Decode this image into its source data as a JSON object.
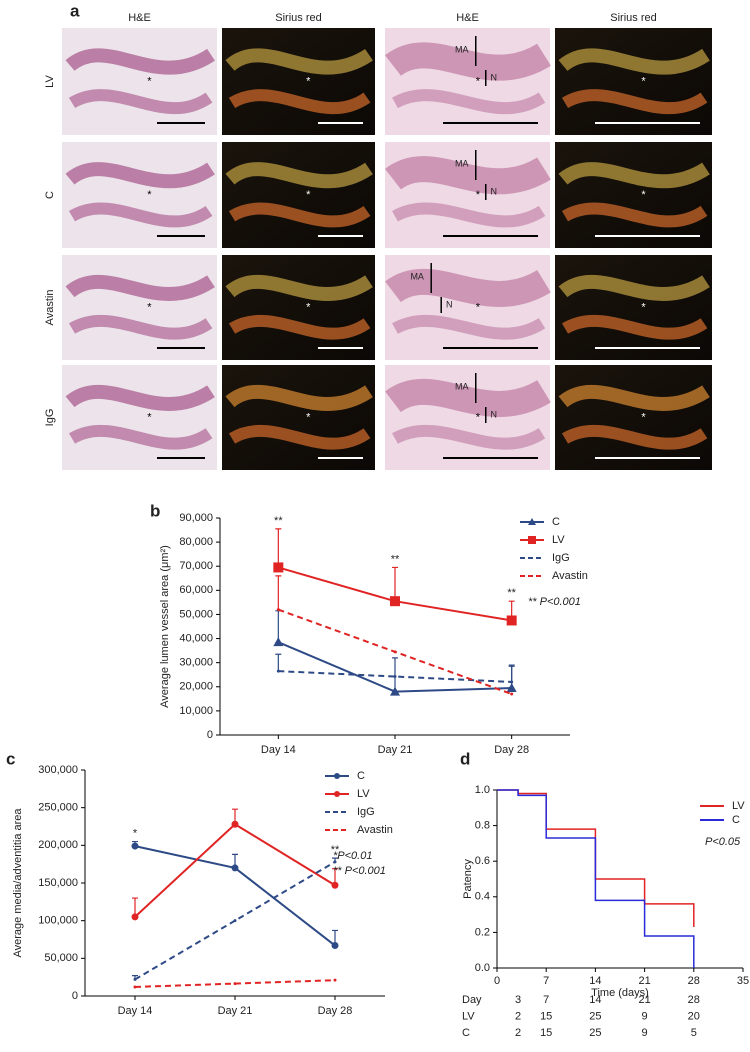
{
  "panel_a": {
    "label": "a",
    "column_headers": [
      "H&E",
      "Sirius red",
      "H&E",
      "Sirius red"
    ],
    "row_labels": [
      "LV",
      "C",
      "Avastin",
      "IgG"
    ],
    "region_labels": [
      "MA",
      "N"
    ],
    "lumen_marker": "*"
  },
  "chart_data": [
    {
      "type": "line",
      "panel": "b",
      "ylabel": "Average lumen vessel area (μm²)",
      "categories": [
        "Day 14",
        "Day 21",
        "Day 28"
      ],
      "ylim": [
        0,
        90000
      ],
      "yticks": [
        0,
        {
          "value": 10000,
          "label": "10,000"
        },
        {
          "value": 20000,
          "label": "20,000"
        },
        {
          "value": 30000,
          "label": "30,000"
        },
        {
          "value": 40000,
          "label": "40,000"
        },
        {
          "value": 50000,
          "label": "50,000"
        },
        {
          "value": 60000,
          "label": "60,000"
        },
        {
          "value": 70000,
          "label": "70,000"
        },
        {
          "value": 80000,
          "label": "80,000"
        },
        {
          "value": 90000,
          "label": "90,000"
        }
      ],
      "series": [
        {
          "name": "C",
          "color": "#2e4a86",
          "dashed": false,
          "marker": "triangle",
          "values": [
            38500,
            18000,
            19500
          ],
          "errors": [
            13000,
            14000,
            9000
          ]
        },
        {
          "name": "LV",
          "color": "#e02424",
          "dashed": false,
          "marker": "square",
          "values": [
            69500,
            55500,
            47500
          ],
          "errors": [
            16000,
            14000,
            8000
          ]
        },
        {
          "name": "IgG",
          "color": "#2e4a86",
          "dashed": true,
          "marker": "none",
          "values": [
            26500,
            24250,
            22000
          ],
          "errors": [
            7000,
            null,
            7000
          ]
        },
        {
          "name": "Avastin",
          "color": "#e02424",
          "dashed": true,
          "marker": "none",
          "values": [
            52000,
            34500,
            17000
          ],
          "errors": [
            14000,
            null,
            null
          ]
        }
      ],
      "significance": [
        "**",
        "**",
        "**"
      ],
      "notes": [
        "** P<0.001"
      ]
    },
    {
      "type": "line",
      "panel": "c",
      "ylabel": "Average media/adventitia area",
      "categories": [
        "Day 14",
        "Day 21",
        "Day 28"
      ],
      "ylim": [
        0,
        300000
      ],
      "yticks": [
        0,
        {
          "value": 50000,
          "label": "50,000"
        },
        {
          "value": 100000,
          "label": "100,000"
        },
        {
          "value": 150000,
          "label": "150,000"
        },
        {
          "value": 200000,
          "label": "200,000"
        },
        {
          "value": 250000,
          "label": "250,000"
        },
        {
          "value": 300000,
          "label": "300,000"
        }
      ],
      "series": [
        {
          "name": "C",
          "color": "#2e4a86",
          "dashed": false,
          "marker": "circle",
          "values": [
            199000,
            170000,
            67000
          ],
          "errors": [
            6000,
            18000,
            20000
          ]
        },
        {
          "name": "LV",
          "color": "#e02424",
          "dashed": false,
          "marker": "circle",
          "values": [
            105000,
            228000,
            147000
          ],
          "errors": [
            25000,
            20000,
            22000
          ]
        },
        {
          "name": "IgG",
          "color": "#2e4a86",
          "dashed": true,
          "marker": "none",
          "values": [
            22000,
            100000,
            178000
          ],
          "errors": [
            5000,
            null,
            5000
          ]
        },
        {
          "name": "Avastin",
          "color": "#e02424",
          "dashed": true,
          "marker": "none",
          "values": [
            12000,
            16500,
            21000
          ],
          "errors": [
            null,
            null,
            null
          ]
        }
      ],
      "significance": [
        "*",
        null,
        "**"
      ],
      "notes": [
        "*P<0.01",
        "** P<0.001"
      ]
    },
    {
      "type": "step",
      "panel": "d",
      "ylabel": "Patency",
      "xlabel": "Time (days)",
      "x": [
        0,
        3,
        7,
        14,
        21,
        28
      ],
      "xlim": [
        0,
        35
      ],
      "xticks": [
        0,
        7,
        14,
        21,
        28,
        35
      ],
      "ylim": [
        0,
        1
      ],
      "yticks": [
        {
          "value": 0,
          "label": "0.0"
        },
        0.2,
        0.4,
        0.6,
        0.8,
        {
          "value": 1,
          "label": "1.0"
        }
      ],
      "series": [
        {
          "name": "LV",
          "color": "#e02424",
          "values": [
            1,
            0.98,
            0.78,
            0.5,
            0.36,
            0.23
          ]
        },
        {
          "name": "C",
          "color": "#2a2ad8",
          "values": [
            1,
            0.97,
            0.73,
            0.38,
            0.18,
            0
          ]
        }
      ],
      "notes": [
        "P<0.05"
      ],
      "risk_table": {
        "row_labels": [
          "Day",
          "LV",
          "C"
        ],
        "rows": [
          [
            3,
            7,
            14,
            21,
            28
          ],
          [
            2,
            15,
            25,
            9,
            20
          ],
          [
            2,
            15,
            25,
            9,
            5
          ]
        ]
      }
    }
  ]
}
